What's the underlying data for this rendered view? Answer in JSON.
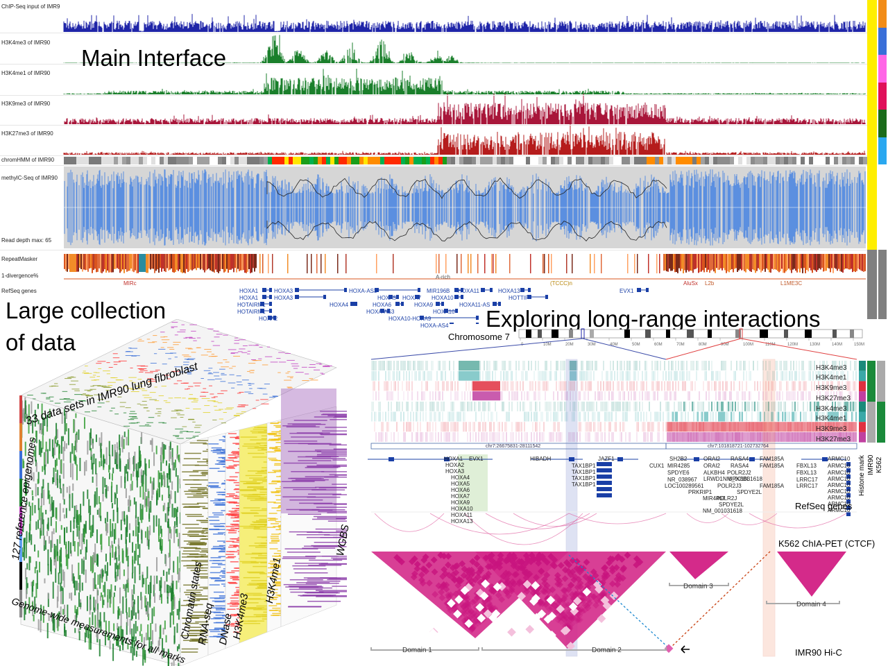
{
  "headings": {
    "main": "Main Interface",
    "large_line1": "Large collection",
    "large_line2": "of data",
    "long_range": "Exploring long-range interactions"
  },
  "tracks": [
    {
      "label": "ChIP-Seq input of IMR9",
      "color": "#1f25a8"
    },
    {
      "label": "H3K4me3 of IMR90",
      "color": "#1a7f2b"
    },
    {
      "label": "H3K4me1 of IMR90",
      "color": "#1a7f2b"
    },
    {
      "label": "H3K9me3 of IMR90",
      "color": "#a8163a"
    },
    {
      "label": "H3K27me3 of IMR90",
      "color": "#b51c1c"
    },
    {
      "label": "chromHMM of IMR90",
      "color": "#888888"
    },
    {
      "label": "methylC-Seq of IMR90",
      "color": "#5b8fe0"
    }
  ],
  "methyl_depth": "Read depth max: 65",
  "repeat": {
    "label1": "RepeatMasker",
    "label2": "1-divergence%",
    "annotations": [
      "MIRc",
      "A-rich",
      "(TCCC)n",
      "AluSx",
      "L2b",
      "L1ME3C"
    ]
  },
  "refseq_label": "RefSeq genes",
  "genes_main": [
    "HOXA1",
    "HOXA3",
    "HOXA-AS3",
    "MIR196B",
    "HOXA11",
    "HOXA13",
    "EVX1",
    "HOXA1",
    "HOXA3",
    "HOXA5",
    "HOXA7",
    "HOXA10",
    "HOTTIP",
    "HOTAIRM1",
    "HOXA4",
    "HOXA6",
    "HOXA9",
    "HOXA11-AS",
    "HOTAIRM1",
    "HOXA-AS3",
    "HOXA10",
    "HOXA2",
    "HOXA10-HOXA9",
    "HOXA-AS4"
  ],
  "right_bar_colors": [
    "#f28c18",
    "#3a6fd8",
    "#ff66e6",
    "#e0105a",
    "#1a6b1a",
    "#2aa8f0"
  ],
  "cube": {
    "top_label": "33 data sets in IMR90 lung fibroblast",
    "left_label": "127 reference epigenomes",
    "bottom_label": "Genome-wide measurements for all marks",
    "columns": [
      "Chromatin states",
      "RNA-seq",
      "DNase",
      "H3K4me3",
      "H3K4me1",
      "WGBS"
    ]
  },
  "chromosome": {
    "label": "Chromosome 7",
    "ticks": [
      "0",
      "10M",
      "20M",
      "30M",
      "40M",
      "50M",
      "60M",
      "70M",
      "80M",
      "90M",
      "100M",
      "110M",
      "120M",
      "130M",
      "140M",
      "150M"
    ]
  },
  "lr_marks": [
    "H3K4me3",
    "H3K4me1",
    "H3K9me3",
    "H3K27me3",
    "H3K4me3",
    "H3K4me1",
    "H3K9me3",
    "H3K27me3"
  ],
  "regions": [
    "chr7:26675831-28111542",
    "chr7:101818721-102732764"
  ],
  "side_labels": [
    "Histone mark",
    "IMR90",
    "K562"
  ],
  "genes_lr_left": [
    "HOXA1",
    "HOXA2",
    "HOXA3",
    "HOXA4",
    "HOXA5",
    "HOXA6",
    "HOXA7",
    "HOXA9",
    "HOXA10",
    "HOXA11",
    "HOXA13"
  ],
  "genes_lr_misc": [
    "EVX1",
    "HIBADH",
    "JAZF1",
    "TAX1BP1",
    "TAX1BP1",
    "TAX1BP1",
    "TAX1BP1",
    "CUX1",
    "SH2B2",
    "MIR4285",
    "SPDYE6",
    "NR_038967",
    "LOC100289561",
    "PRKRIP1",
    "MIR4467",
    "POLR2J",
    "SPDYE2L",
    "NM_001031618",
    "ORAI2",
    "ORAI2",
    "ALKBH4",
    "LRWD1",
    "POLR2J3",
    "NM_001031618",
    "RASA4",
    "RASA4",
    "POLR2J2",
    "UPK3BL",
    "SPDYE2L",
    "FAM185A",
    "FAM185A",
    "FAM185A",
    "FBXL13",
    "FBXL13",
    "LRRC17",
    "LRRC17",
    "ARMC10",
    "ARMC10",
    "ARMC10",
    "ARMC10",
    "ARMC10",
    "ARMC10",
    "ARMC10",
    "ARMC10",
    "ARMC10"
  ],
  "refseq_right": "RefSeq genes",
  "chiapet": "K562 ChIA-PET (CTCF)",
  "hic": "IMR90 Hi-C",
  "domains": [
    "Domain 1",
    "Domain 2",
    "Domain 3",
    "Domain 4"
  ]
}
